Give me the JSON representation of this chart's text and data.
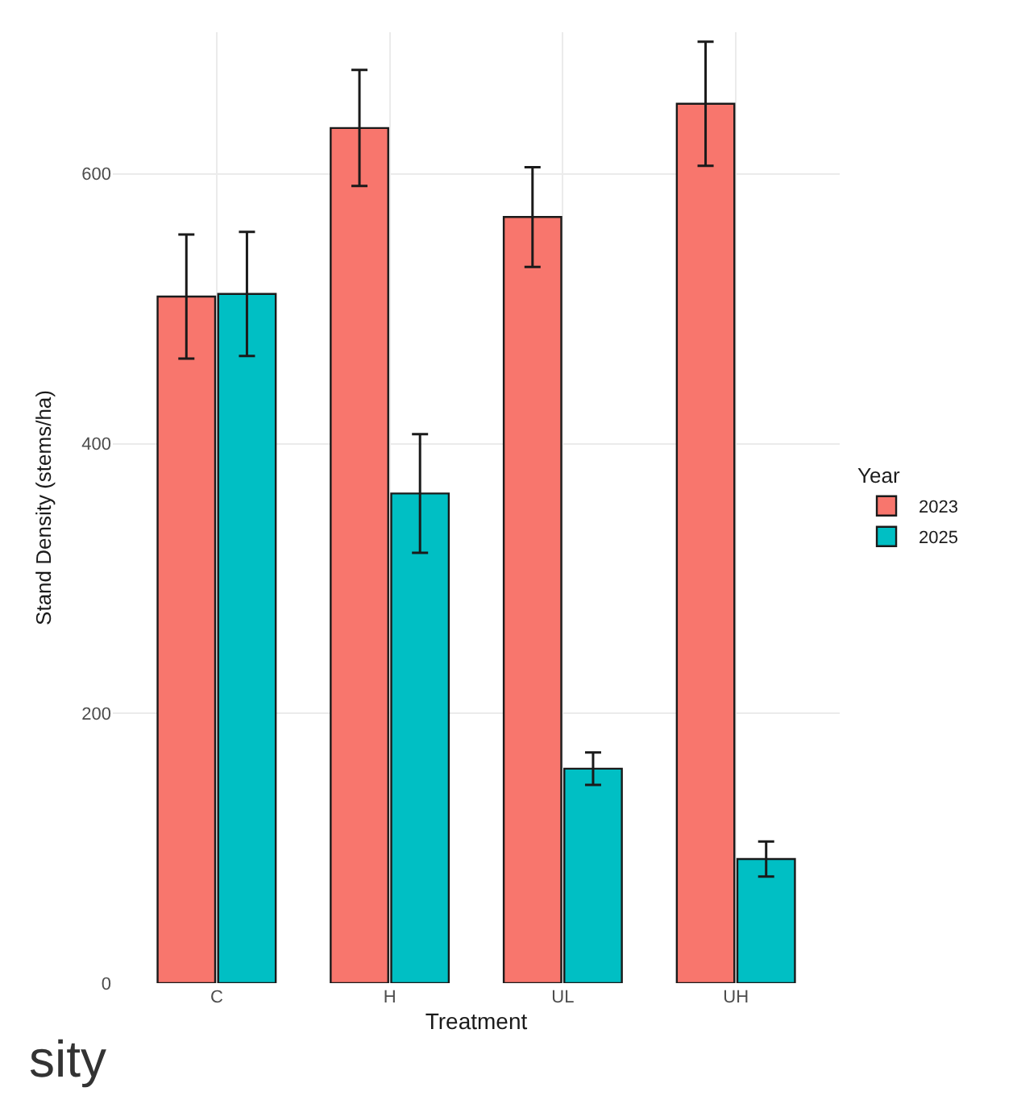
{
  "chart_data": {
    "type": "bar",
    "xlabel": "Treatment",
    "ylabel": "Stand Density (stems/ha)",
    "legend_title": "Year",
    "categories": [
      "C",
      "H",
      "UL",
      "UH"
    ],
    "series": [
      {
        "name": "2023",
        "color": "#f8766d",
        "values": [
          509,
          634,
          568,
          652
        ],
        "errors": [
          46,
          43,
          37,
          46
        ]
      },
      {
        "name": "2025",
        "color": "#00bfc4",
        "values": [
          511,
          363,
          159,
          92
        ],
        "errors": [
          46,
          44,
          12,
          13
        ]
      }
    ],
    "ylim": [
      0,
      705
    ],
    "yticks": [
      0,
      200,
      400,
      600
    ],
    "grid": true,
    "legend": "right",
    "annotations": [
      "sity"
    ]
  }
}
